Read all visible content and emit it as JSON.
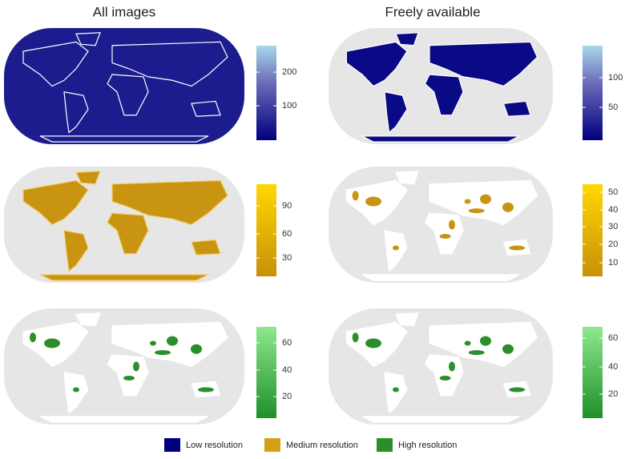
{
  "columns": [
    "All images",
    "Freely available"
  ],
  "panels": [
    {
      "ticks": [
        200,
        100
      ]
    },
    {
      "ticks": [
        100,
        50
      ]
    },
    {
      "ticks": [
        90,
        60,
        30
      ]
    },
    {
      "ticks": [
        50,
        40,
        30,
        20,
        10
      ]
    },
    {
      "ticks": [
        60,
        40,
        20
      ]
    },
    {
      "ticks": [
        60,
        40,
        20
      ]
    }
  ],
  "legend": [
    {
      "label": "Low resolution",
      "color": "#00007f"
    },
    {
      "label": "Medium resolution",
      "color": "#d4a017"
    },
    {
      "label": "High resolution",
      "color": "#2a8f2a"
    }
  ]
}
